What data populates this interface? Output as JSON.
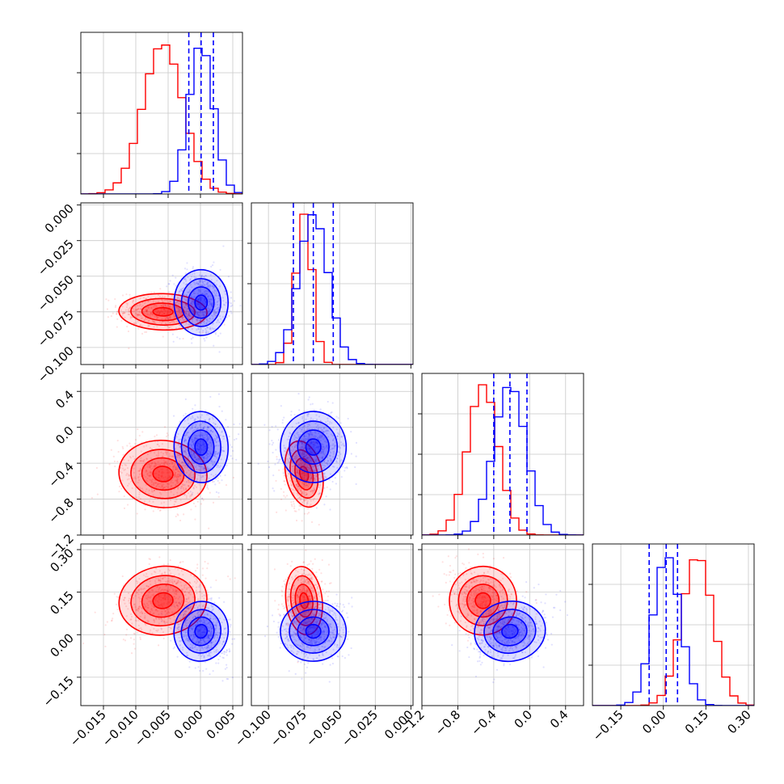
{
  "chart_data": {
    "type": "corner",
    "title": "",
    "grid": true,
    "series": [
      {
        "color": "#ff0000",
        "means": [
          -0.0058,
          -0.075,
          -0.52,
          0.12
        ],
        "sds": [
          0.0031,
          0.0058,
          0.17,
          0.055
        ],
        "corr": [
          [
            1,
            -0.1,
            -0.2,
            0.3
          ],
          [
            -0.1,
            1,
            0.2,
            0.1
          ],
          [
            -0.2,
            0.2,
            1,
            -0.2
          ],
          [
            0.3,
            0.1,
            -0.2,
            1
          ]
        ]
      },
      {
        "color": "#0000ff",
        "means": [
          0.0001,
          -0.0685,
          -0.22,
          0.012
        ],
        "sds": [
          0.0019,
          0.0105,
          0.18,
          0.048
        ],
        "corr": [
          [
            1,
            0,
            0.05,
            -0.3
          ],
          [
            0,
            1,
            0,
            0.05
          ],
          [
            0.05,
            0,
            1,
            0.3
          ],
          [
            -0.3,
            0.05,
            0.3,
            1
          ]
        ]
      }
    ],
    "quantile_lines": [
      [
        -0.0018,
        0.0001,
        0.002
      ],
      [
        -0.0825,
        -0.0685,
        -0.0545
      ],
      [
        -0.4,
        -0.22,
        -0.03
      ],
      [
        -0.05,
        0.01,
        0.05
      ]
    ],
    "quantile_color": "#0000ff",
    "params": [
      {
        "range": [
          -0.0185,
          0.0065
        ],
        "ticks": [
          -0.015,
          -0.01,
          -0.005,
          0.0,
          0.005
        ],
        "tick_labels": [
          "−0.015",
          "−0.010",
          "−0.005",
          "0.000",
          "0.005"
        ]
      },
      {
        "range": [
          -0.112,
          0.0015
        ],
        "ticks": [
          -0.1,
          -0.075,
          -0.05,
          -0.025,
          0.0
        ],
        "tick_labels": [
          "−0.100",
          "−0.075",
          "−0.050",
          "−0.025",
          "0.000"
        ]
      },
      {
        "range": [
          -1.2,
          0.6
        ],
        "ticks": [
          -1.2,
          -0.8,
          -0.4,
          0.0,
          0.4
        ],
        "tick_labels": [
          "−1.2",
          "−0.8",
          "−0.4",
          "0.0",
          "0.4"
        ]
      },
      {
        "range": [
          -0.25,
          0.32
        ],
        "ticks": [
          -0.15,
          0.0,
          0.15,
          0.3
        ],
        "tick_labels": [
          "−0.15",
          "0.00",
          "0.15",
          "0.30"
        ]
      }
    ]
  }
}
